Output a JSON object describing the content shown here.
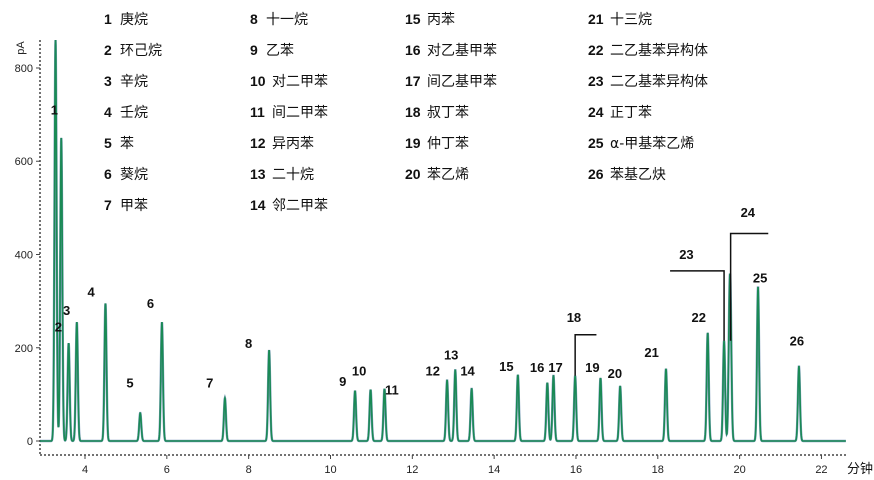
{
  "chart_data": {
    "type": "line",
    "ylabel": "pA",
    "xlabel": "分钟",
    "xlim": [
      2.9,
      22.6
    ],
    "ylim": [
      -30,
      860
    ],
    "xticks": [
      4,
      6,
      8,
      10,
      12,
      14,
      16,
      18,
      20,
      22
    ],
    "yticks": [
      0,
      200,
      400,
      600,
      800
    ],
    "colors": {
      "trace": "#1a8a55",
      "trace_dark": "#1a4f8a",
      "text": "#111111"
    },
    "legend": [
      {
        "num": "1",
        "name": "庚烷"
      },
      {
        "num": "2",
        "name": "环己烷"
      },
      {
        "num": "3",
        "name": "辛烷"
      },
      {
        "num": "4",
        "name": "壬烷"
      },
      {
        "num": "5",
        "name": "苯"
      },
      {
        "num": "6",
        "name": "葵烷"
      },
      {
        "num": "7",
        "name": "甲苯"
      },
      {
        "num": "8",
        "name": "十一烷"
      },
      {
        "num": "9",
        "name": "乙苯"
      },
      {
        "num": "10",
        "name": "对二甲苯"
      },
      {
        "num": "11",
        "name": "间二甲苯"
      },
      {
        "num": "12",
        "name": "异丙苯"
      },
      {
        "num": "13",
        "name": "二十烷"
      },
      {
        "num": "14",
        "name": "邻二甲苯"
      },
      {
        "num": "15",
        "name": "丙苯"
      },
      {
        "num": "16",
        "name": "对乙基甲苯"
      },
      {
        "num": "17",
        "name": "间乙基甲苯"
      },
      {
        "num": "18",
        "name": "叔丁苯"
      },
      {
        "num": "19",
        "name": "仲丁苯"
      },
      {
        "num": "20",
        "name": "苯乙烯"
      },
      {
        "num": "21",
        "name": "十三烷"
      },
      {
        "num": "22",
        "name": "二乙基苯异构体"
      },
      {
        "num": "23",
        "name": "二乙基苯异构体"
      },
      {
        "num": "24",
        "name": "正丁苯"
      },
      {
        "num": "25",
        "name": "α-甲基苯乙烯"
      },
      {
        "num": "26",
        "name": "苯基乙炔"
      }
    ],
    "peaks": [
      {
        "label": "1",
        "x": 3.28,
        "y": 860,
        "lx": 3.25,
        "ly": 700
      },
      {
        "label": "2",
        "x": 3.42,
        "y": 650,
        "lx": 3.35,
        "ly": 235
      },
      {
        "label": "3",
        "x": 3.6,
        "y": 210,
        "lx": 3.55,
        "ly": 270
      },
      {
        "label": "",
        "x": 3.8,
        "y": 255
      },
      {
        "label": "4",
        "x": 4.5,
        "y": 295,
        "lx": 4.15,
        "ly": 310
      },
      {
        "label": "5",
        "x": 5.35,
        "y": 60,
        "lx": 5.1,
        "ly": 115
      },
      {
        "label": "6",
        "x": 5.88,
        "y": 255,
        "lx": 5.6,
        "ly": 285
      },
      {
        "label": "7",
        "x": 7.42,
        "y": 92,
        "lx": 7.05,
        "ly": 115
      },
      {
        "label": "8",
        "x": 8.5,
        "y": 195,
        "lx": 8.0,
        "ly": 200
      },
      {
        "label": "9",
        "x": 10.6,
        "y": 108,
        "lx": 10.3,
        "ly": 118
      },
      {
        "label": "10",
        "x": 10.98,
        "y": 110,
        "lx": 10.7,
        "ly": 140
      },
      {
        "label": "11",
        "x": 11.32,
        "y": 112,
        "lx": 11.5,
        "ly": 100
      },
      {
        "label": "12",
        "x": 12.85,
        "y": 130,
        "lx": 12.5,
        "ly": 140
      },
      {
        "label": "13",
        "x": 13.05,
        "y": 152,
        "lx": 12.95,
        "ly": 175
      },
      {
        "label": "14",
        "x": 13.45,
        "y": 112,
        "lx": 13.35,
        "ly": 140
      },
      {
        "label": "15",
        "x": 14.58,
        "y": 142,
        "lx": 14.3,
        "ly": 150
      },
      {
        "label": "16",
        "x": 15.3,
        "y": 125,
        "lx": 15.05,
        "ly": 148
      },
      {
        "label": "17",
        "x": 15.45,
        "y": 140,
        "lx": 15.5,
        "ly": 148
      },
      {
        "label": "18",
        "x": 15.98,
        "y": 140,
        "lx": 15.95,
        "ly": 255
      },
      {
        "label": "19",
        "x": 16.6,
        "y": 135,
        "lx": 16.4,
        "ly": 148
      },
      {
        "label": "20",
        "x": 17.08,
        "y": 118,
        "lx": 16.95,
        "ly": 135
      },
      {
        "label": "21",
        "x": 18.2,
        "y": 155,
        "lx": 17.85,
        "ly": 180
      },
      {
        "label": "22",
        "x": 19.22,
        "y": 232,
        "lx": 19.0,
        "ly": 255
      },
      {
        "label": "23",
        "x": 19.62,
        "y": 215,
        "lx": 18.7,
        "ly": 390
      },
      {
        "label": "",
        "x": 19.75,
        "y": 215
      },
      {
        "label": "24",
        "x": 19.78,
        "y": 215,
        "lx": 20.2,
        "ly": 480
      },
      {
        "label": "25",
        "x": 20.45,
        "y": 330,
        "lx": 20.5,
        "ly": 340
      },
      {
        "label": "26",
        "x": 21.45,
        "y": 160,
        "lx": 21.4,
        "ly": 205
      }
    ]
  }
}
